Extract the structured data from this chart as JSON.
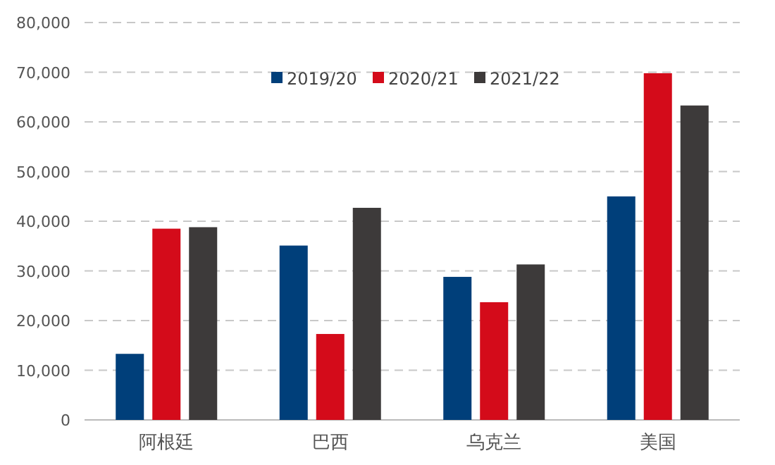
{
  "chart_data": {
    "type": "bar",
    "categories": [
      "阿根廷",
      "巴西",
      "乌克兰",
      "美国"
    ],
    "series": [
      {
        "name": "2019/20",
        "color": "#003f7a",
        "values": [
          13300,
          35100,
          28800,
          45000
        ]
      },
      {
        "name": "2020/21",
        "color": "#d40b1a",
        "values": [
          38500,
          17300,
          23700,
          69800
        ]
      },
      {
        "name": "2021/22",
        "color": "#3d3a3a",
        "values": [
          38800,
          42700,
          31300,
          63300
        ]
      }
    ],
    "ylim": [
      0,
      80000
    ],
    "yticks": [
      {
        "value": 0,
        "label": "0"
      },
      {
        "value": 10000,
        "label": "10,000"
      },
      {
        "value": 20000,
        "label": "20,000"
      },
      {
        "value": 30000,
        "label": "30,000"
      },
      {
        "value": 40000,
        "label": "40,000"
      },
      {
        "value": 50000,
        "label": "50,000"
      },
      {
        "value": 60000,
        "label": "60,000"
      },
      {
        "value": 70000,
        "label": "70,000"
      },
      {
        "value": 80000,
        "label": "80,000"
      }
    ],
    "grid": "y",
    "legend": "top"
  }
}
